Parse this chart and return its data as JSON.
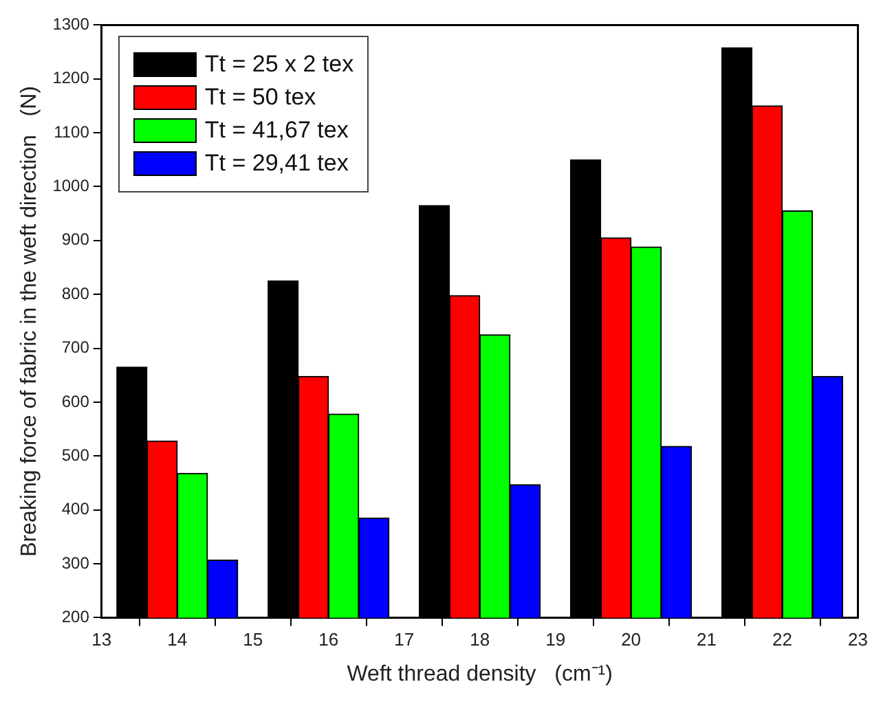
{
  "chart_data": {
    "type": "bar",
    "xlabel": "Weft thread density   (cm⁻¹)",
    "ylabel": "Breaking force of fabric in the weft direction   (N)",
    "xlim": [
      13,
      23
    ],
    "xticks": [
      13,
      14,
      15,
      16,
      17,
      18,
      19,
      20,
      21,
      22,
      23
    ],
    "ylim": [
      200,
      1300
    ],
    "yticks": [
      200,
      300,
      400,
      500,
      600,
      700,
      800,
      900,
      1000,
      1100,
      1200,
      1300
    ],
    "grid": false,
    "legend": "top left",
    "series": [
      {
        "name": "Tt = 25 x 2 tex",
        "color": "#000000",
        "x": [
          13.4,
          15.4,
          17.4,
          19.4,
          21.4
        ],
        "values": [
          665,
          825,
          965,
          1050,
          1258
        ]
      },
      {
        "name": "Tt = 50 tex",
        "color": "#ff0000",
        "x": [
          13.8,
          15.8,
          17.8,
          19.8,
          21.8
        ],
        "values": [
          528,
          648,
          798,
          905,
          1150
        ]
      },
      {
        "name": "Tt = 41,67 tex",
        "color": "#00ff00",
        "x": [
          14.2,
          16.2,
          18.2,
          20.2,
          22.2
        ],
        "values": [
          468,
          578,
          725,
          888,
          955
        ]
      },
      {
        "name": "Tt = 29,41 tex",
        "color": "#0000ff",
        "x": [
          14.6,
          16.6,
          18.6,
          20.6,
          22.6
        ],
        "values": [
          307,
          385,
          447,
          518,
          648
        ]
      }
    ]
  }
}
